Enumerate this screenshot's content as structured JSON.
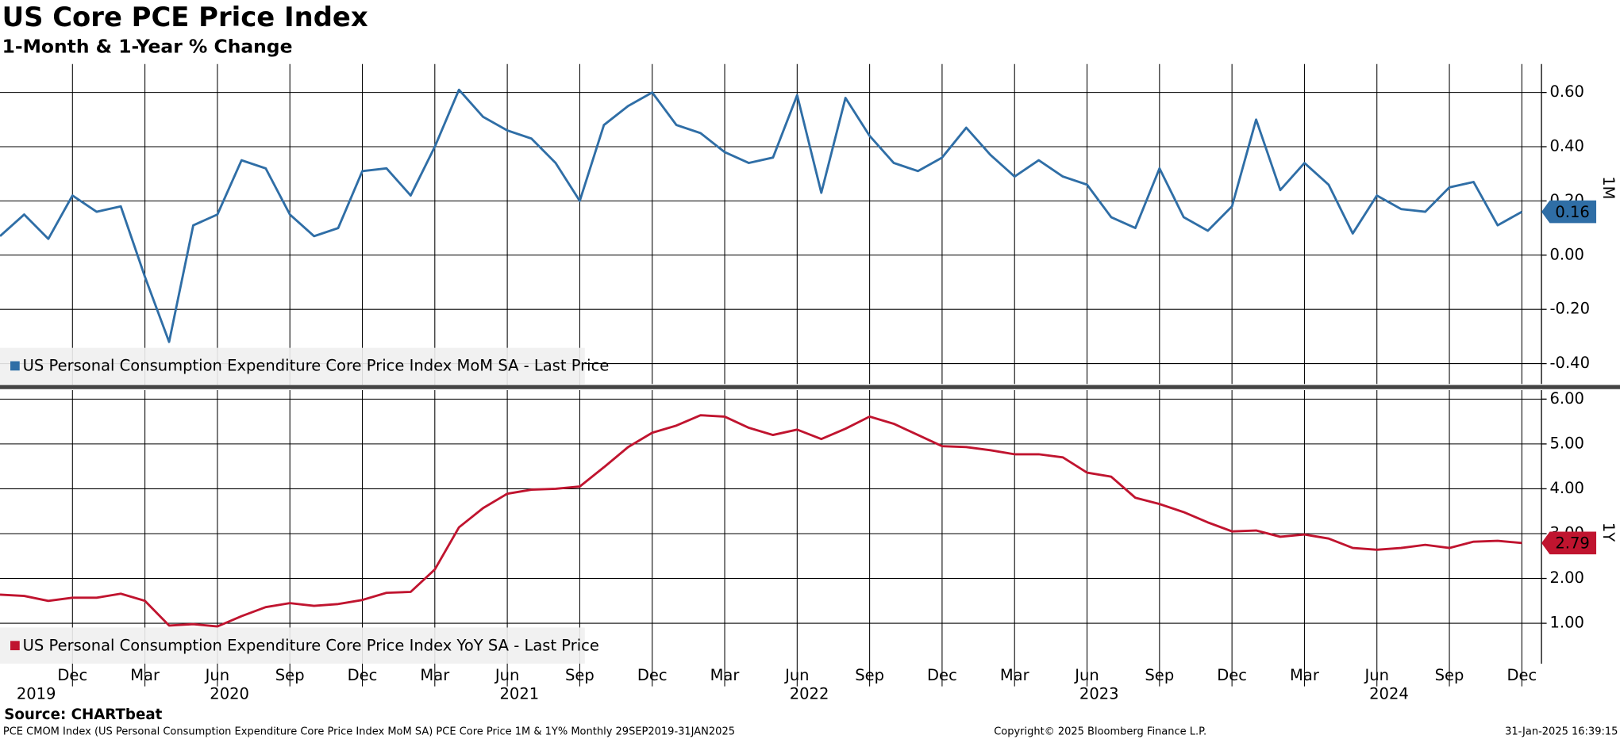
{
  "chart_data": [
    {
      "type": "line",
      "title": "US Core PCE Price Index",
      "subtitle": "1-Month & 1-Year % Change",
      "x": [
        "2019-09",
        "2019-10",
        "2019-11",
        "2019-12",
        "2020-01",
        "2020-02",
        "2020-03",
        "2020-04",
        "2020-05",
        "2020-06",
        "2020-07",
        "2020-08",
        "2020-09",
        "2020-10",
        "2020-11",
        "2020-12",
        "2021-01",
        "2021-02",
        "2021-03",
        "2021-04",
        "2021-05",
        "2021-06",
        "2021-07",
        "2021-08",
        "2021-09",
        "2021-10",
        "2021-11",
        "2021-12",
        "2022-01",
        "2022-02",
        "2022-03",
        "2022-04",
        "2022-05",
        "2022-06",
        "2022-07",
        "2022-08",
        "2022-09",
        "2022-10",
        "2022-11",
        "2022-12",
        "2023-01",
        "2023-02",
        "2023-03",
        "2023-04",
        "2023-05",
        "2023-06",
        "2023-07",
        "2023-08",
        "2023-09",
        "2023-10",
        "2023-11",
        "2023-12",
        "2024-01",
        "2024-02",
        "2024-03",
        "2024-04",
        "2024-05",
        "2024-06",
        "2024-07",
        "2024-08",
        "2024-09",
        "2024-10",
        "2024-11",
        "2024-12"
      ],
      "series": [
        {
          "name": "US Personal Consumption Expenditure Core Price Index MoM SA - Last Price",
          "color": "#2f6ea6",
          "values": [
            0.07,
            0.15,
            0.06,
            0.22,
            0.16,
            0.18,
            -0.08,
            -0.32,
            0.11,
            0.15,
            0.35,
            0.32,
            0.15,
            0.07,
            0.1,
            0.31,
            0.32,
            0.22,
            0.4,
            0.61,
            0.51,
            0.46,
            0.43,
            0.34,
            0.2,
            0.48,
            0.55,
            0.6,
            0.48,
            0.45,
            0.38,
            0.34,
            0.36,
            0.59,
            0.23,
            0.58,
            0.44,
            0.34,
            0.31,
            0.36,
            0.47,
            0.37,
            0.29,
            0.35,
            0.29,
            0.26,
            0.14,
            0.1,
            0.32,
            0.14,
            0.09,
            0.18,
            0.5,
            0.24,
            0.34,
            0.26,
            0.08,
            0.22,
            0.17,
            0.16,
            0.25,
            0.27,
            0.11,
            0.16
          ]
        }
      ],
      "ylim": [
        -0.475,
        0.705
      ],
      "yticks": [
        {
          "value": 0.6,
          "label": "0.60"
        },
        {
          "value": 0.4,
          "label": "0.40"
        },
        {
          "value": 0.2,
          "label": "0.20"
        },
        {
          "value": 0,
          "label": "0.00"
        },
        {
          "value": -0.2,
          "label": "-0.20"
        },
        {
          "value": -0.4,
          "label": "-0.40"
        }
      ],
      "xticks": [
        "2019-12",
        "2020-03",
        "2020-06",
        "2020-09",
        "2020-12",
        "2021-03",
        "2021-06",
        "2021-09",
        "2021-12",
        "2022-03",
        "2022-06",
        "2022-09",
        "2022-12",
        "2023-03",
        "2023-06",
        "2023-09",
        "2023-12",
        "2024-03",
        "2024-06",
        "2024-09",
        "2024-12"
      ],
      "axis_label": "1M",
      "grid": true
    },
    {
      "type": "line",
      "x": [
        "2019-09",
        "2019-10",
        "2019-11",
        "2019-12",
        "2020-01",
        "2020-02",
        "2020-03",
        "2020-04",
        "2020-05",
        "2020-06",
        "2020-07",
        "2020-08",
        "2020-09",
        "2020-10",
        "2020-11",
        "2020-12",
        "2021-01",
        "2021-02",
        "2021-03",
        "2021-04",
        "2021-05",
        "2021-06",
        "2021-07",
        "2021-08",
        "2021-09",
        "2021-10",
        "2021-11",
        "2021-12",
        "2022-01",
        "2022-02",
        "2022-03",
        "2022-04",
        "2022-05",
        "2022-06",
        "2022-07",
        "2022-08",
        "2022-09",
        "2022-10",
        "2022-11",
        "2022-12",
        "2023-01",
        "2023-02",
        "2023-03",
        "2023-04",
        "2023-05",
        "2023-06",
        "2023-07",
        "2023-08",
        "2023-09",
        "2023-10",
        "2023-11",
        "2023-12",
        "2024-01",
        "2024-02",
        "2024-03",
        "2024-04",
        "2024-05",
        "2024-06",
        "2024-07",
        "2024-08",
        "2024-09",
        "2024-10",
        "2024-11",
        "2024-12"
      ],
      "series": [
        {
          "name": "US Personal Consumption Expenditure Core Price Index YoY SA - Last Price",
          "color": "#c0142f",
          "values": [
            1.64,
            1.61,
            1.5,
            1.57,
            1.57,
            1.66,
            1.5,
            0.95,
            0.98,
            0.93,
            1.16,
            1.36,
            1.45,
            1.39,
            1.43,
            1.52,
            1.68,
            1.7,
            2.2,
            3.14,
            3.57,
            3.89,
            3.98,
            4.0,
            4.05,
            4.48,
            4.93,
            5.25,
            5.41,
            5.64,
            5.61,
            5.36,
            5.2,
            5.32,
            5.11,
            5.34,
            5.61,
            5.45,
            5.2,
            4.95,
            4.93,
            4.86,
            4.77,
            4.77,
            4.7,
            4.36,
            4.27,
            3.8,
            3.66,
            3.48,
            3.25,
            3.05,
            3.07,
            2.93,
            2.98,
            2.89,
            2.68,
            2.64,
            2.68,
            2.75,
            2.68,
            2.82,
            2.84,
            2.79
          ]
        }
      ],
      "ylim": [
        0.1,
        6.2
      ],
      "yticks": [
        {
          "value": 6,
          "label": "6.00"
        },
        {
          "value": 5,
          "label": "5.00"
        },
        {
          "value": 4,
          "label": "4.00"
        },
        {
          "value": 3,
          "label": "3.00"
        },
        {
          "value": 2,
          "label": "2.00"
        },
        {
          "value": 1,
          "label": "1.00"
        }
      ],
      "xticks": [
        {
          "value": "2019-12",
          "label": "Dec"
        },
        {
          "value": "2020-03",
          "label": "Mar"
        },
        {
          "value": "2020-06",
          "label": "Jun"
        },
        {
          "value": "2020-09",
          "label": "Sep"
        },
        {
          "value": "2020-12",
          "label": "Dec"
        },
        {
          "value": "2021-03",
          "label": "Mar"
        },
        {
          "value": "2021-06",
          "label": "Jun"
        },
        {
          "value": "2021-09",
          "label": "Sep"
        },
        {
          "value": "2021-12",
          "label": "Dec"
        },
        {
          "value": "2022-03",
          "label": "Mar"
        },
        {
          "value": "2022-06",
          "label": "Jun"
        },
        {
          "value": "2022-09",
          "label": "Sep"
        },
        {
          "value": "2022-12",
          "label": "Dec"
        },
        {
          "value": "2023-03",
          "label": "Mar"
        },
        {
          "value": "2023-06",
          "label": "Jun"
        },
        {
          "value": "2023-09",
          "label": "Sep"
        },
        {
          "value": "2023-12",
          "label": "Dec"
        },
        {
          "value": "2024-03",
          "label": "Mar"
        },
        {
          "value": "2024-06",
          "label": "Jun"
        },
        {
          "value": "2024-09",
          "label": "Sep"
        },
        {
          "value": "2024-12",
          "label": "Dec"
        }
      ],
      "x_group_labels": [
        "2019",
        "2020",
        "2021",
        "2022",
        "2023",
        "2024"
      ],
      "axis_label": "1Y",
      "grid": true
    }
  ],
  "footer": {
    "source": "Source: CHARTbeat",
    "note": "PCE CMOM Index (US Personal Consumption Expenditure Core Price Index MoM SA) PCE Core Price 1M & 1Y%  Monthly 29SEP2019-31JAN2025",
    "copyright": "Copyright© 2025 Bloomberg Finance L.P.",
    "timestamp": "31-Jan-2025 16:39:15"
  }
}
